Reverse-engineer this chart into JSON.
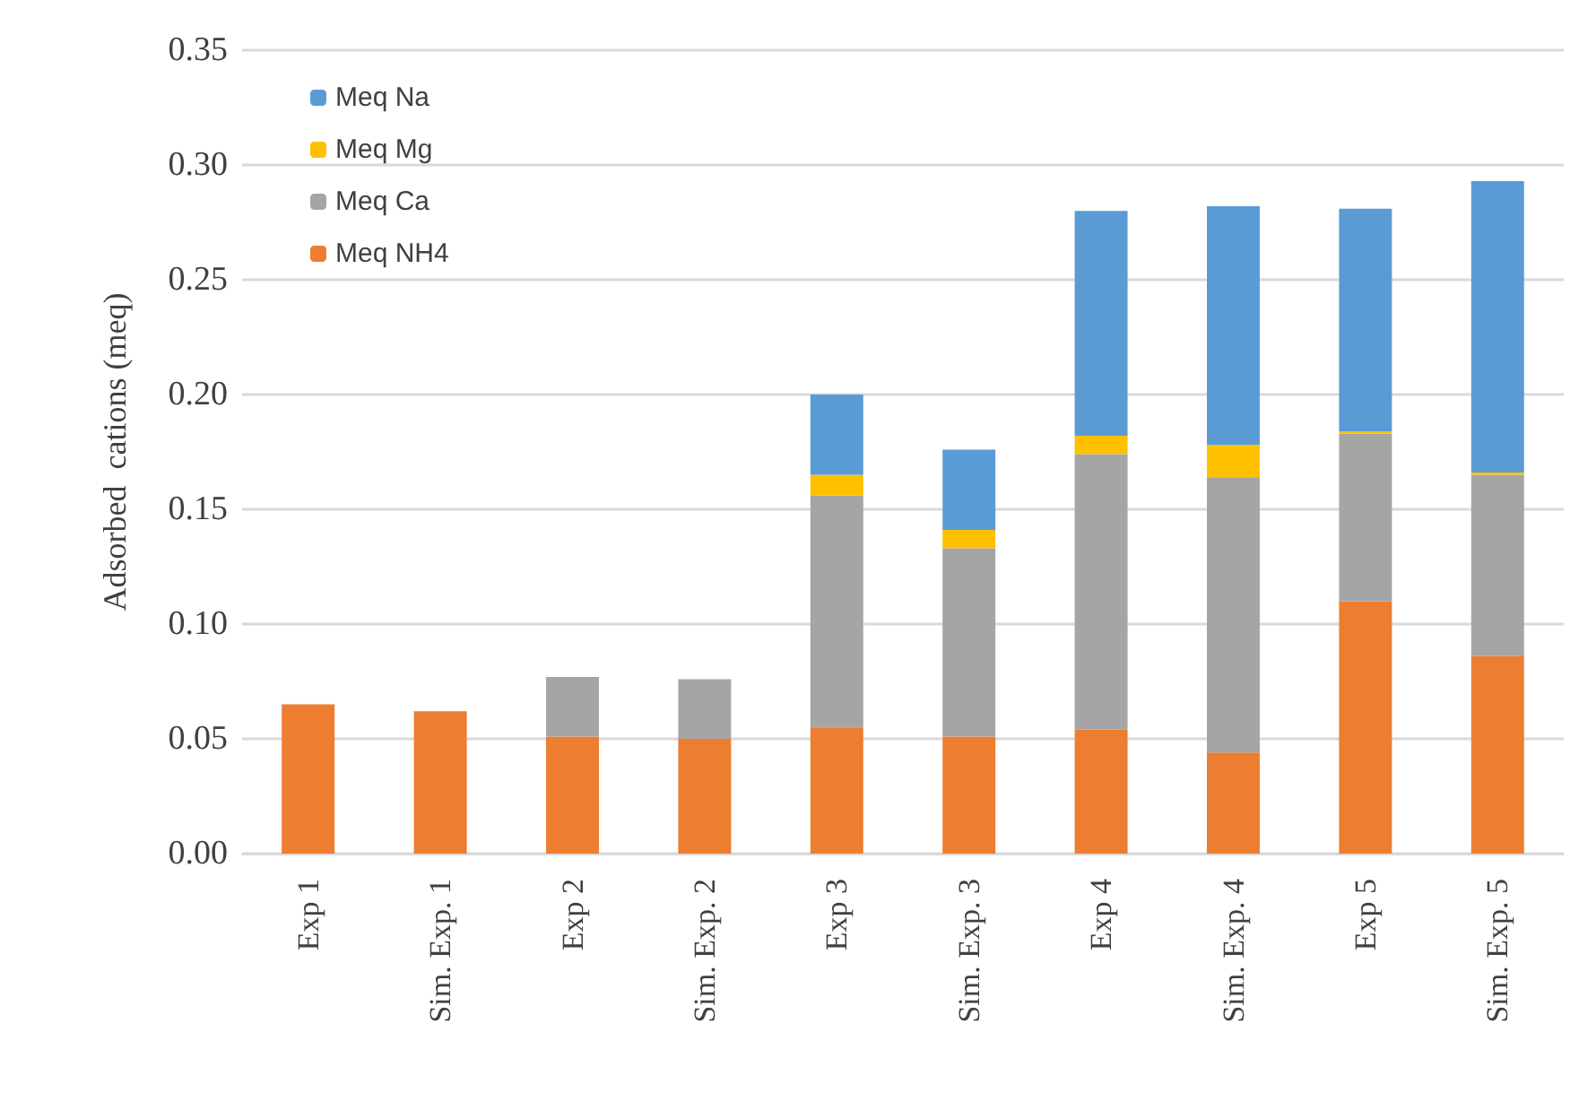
{
  "chart_data": {
    "type": "bar",
    "stacked": true,
    "ylabel": "Adsorbed  cations (meq)",
    "categories": [
      "Exp 1",
      "Sim. Exp. 1",
      "Exp 2",
      "Sim. Exp. 2",
      "Exp 3",
      "Sim. Exp. 3",
      "Exp 4",
      "Sim. Exp. 4",
      "Exp 5",
      "Sim. Exp. 5"
    ],
    "series": [
      {
        "name": "Meq NH4",
        "color": "#ed7d31",
        "values": [
          0.065,
          0.062,
          0.051,
          0.05,
          0.055,
          0.051,
          0.054,
          0.044,
          0.11,
          0.086
        ]
      },
      {
        "name": "Meq Ca",
        "color": "#a5a5a5",
        "values": [
          0,
          0,
          0.026,
          0.026,
          0.101,
          0.082,
          0.12,
          0.12,
          0.073,
          0.079
        ]
      },
      {
        "name": "Meq Mg",
        "color": "#ffc000",
        "values": [
          0,
          0,
          0,
          0,
          0.009,
          0.008,
          0.008,
          0.014,
          0.001,
          0.001
        ]
      },
      {
        "name": "Meq Na",
        "color": "#5b9bd5",
        "values": [
          0,
          0,
          0,
          0,
          0.035,
          0.035,
          0.098,
          0.104,
          0.097,
          0.127
        ]
      }
    ],
    "ylim": [
      0,
      0.35
    ],
    "yticks": [
      {
        "value": 0,
        "label": "0.00"
      },
      {
        "value": 0.05,
        "label": "0.05"
      },
      {
        "value": 0.1,
        "label": "0.10"
      },
      {
        "value": 0.15,
        "label": "0.15"
      },
      {
        "value": 0.2,
        "label": "0.20"
      },
      {
        "value": 0.25,
        "label": "0.25"
      },
      {
        "value": 0.3,
        "label": "0.30"
      },
      {
        "value": 0.35,
        "label": "0.35"
      }
    ],
    "grid": "y",
    "legend": "top left"
  }
}
